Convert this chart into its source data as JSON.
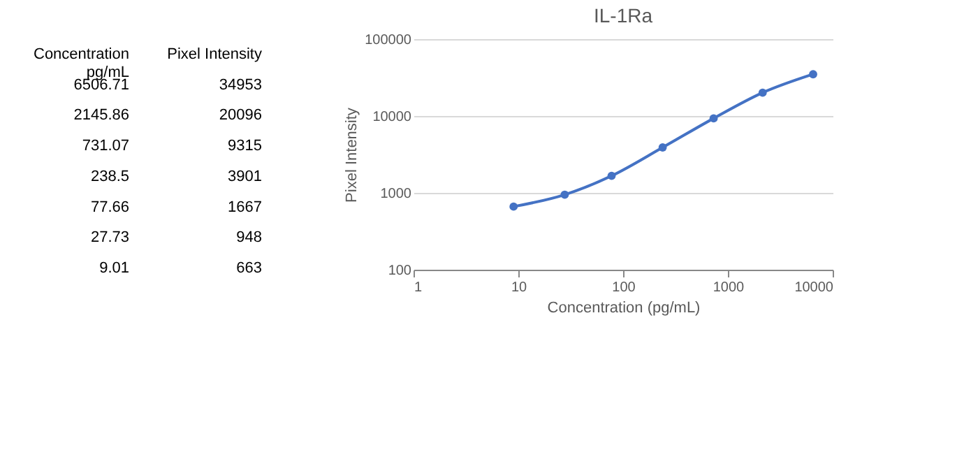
{
  "chart_data": [
    {
      "type": "other",
      "annotations": [
        "Concentration\npg/mL",
        "Pixel Intensity",
        "6506.71",
        "34953",
        "2145.86",
        "20096",
        "731.07",
        "9315",
        "238.5",
        "3901",
        "77.66",
        "1667",
        "27.73",
        "948",
        "9.01",
        "663"
      ]
    },
    {
      "type": "line",
      "title": "IL-1Ra",
      "xlabel": "Concentration (pg/mL)",
      "ylabel": "Pixel Intensity",
      "x": [
        6506.71,
        2145.86,
        731.07,
        238.5,
        77.66,
        27.73,
        9.01
      ],
      "series": [
        {
          "color": "#4472c4",
          "values": [
            34953,
            20096,
            9315,
            3901,
            1667,
            948,
            663
          ]
        }
      ],
      "log": "xy",
      "xlim": [
        1,
        10000
      ],
      "xticks": [
        1,
        10,
        100,
        1000,
        10000
      ],
      "ylim": [
        100,
        100000
      ],
      "yticks": [
        100,
        1000,
        10000,
        100000
      ],
      "grid": "y",
      "marker": "circle",
      "line_style": "solid"
    }
  ]
}
